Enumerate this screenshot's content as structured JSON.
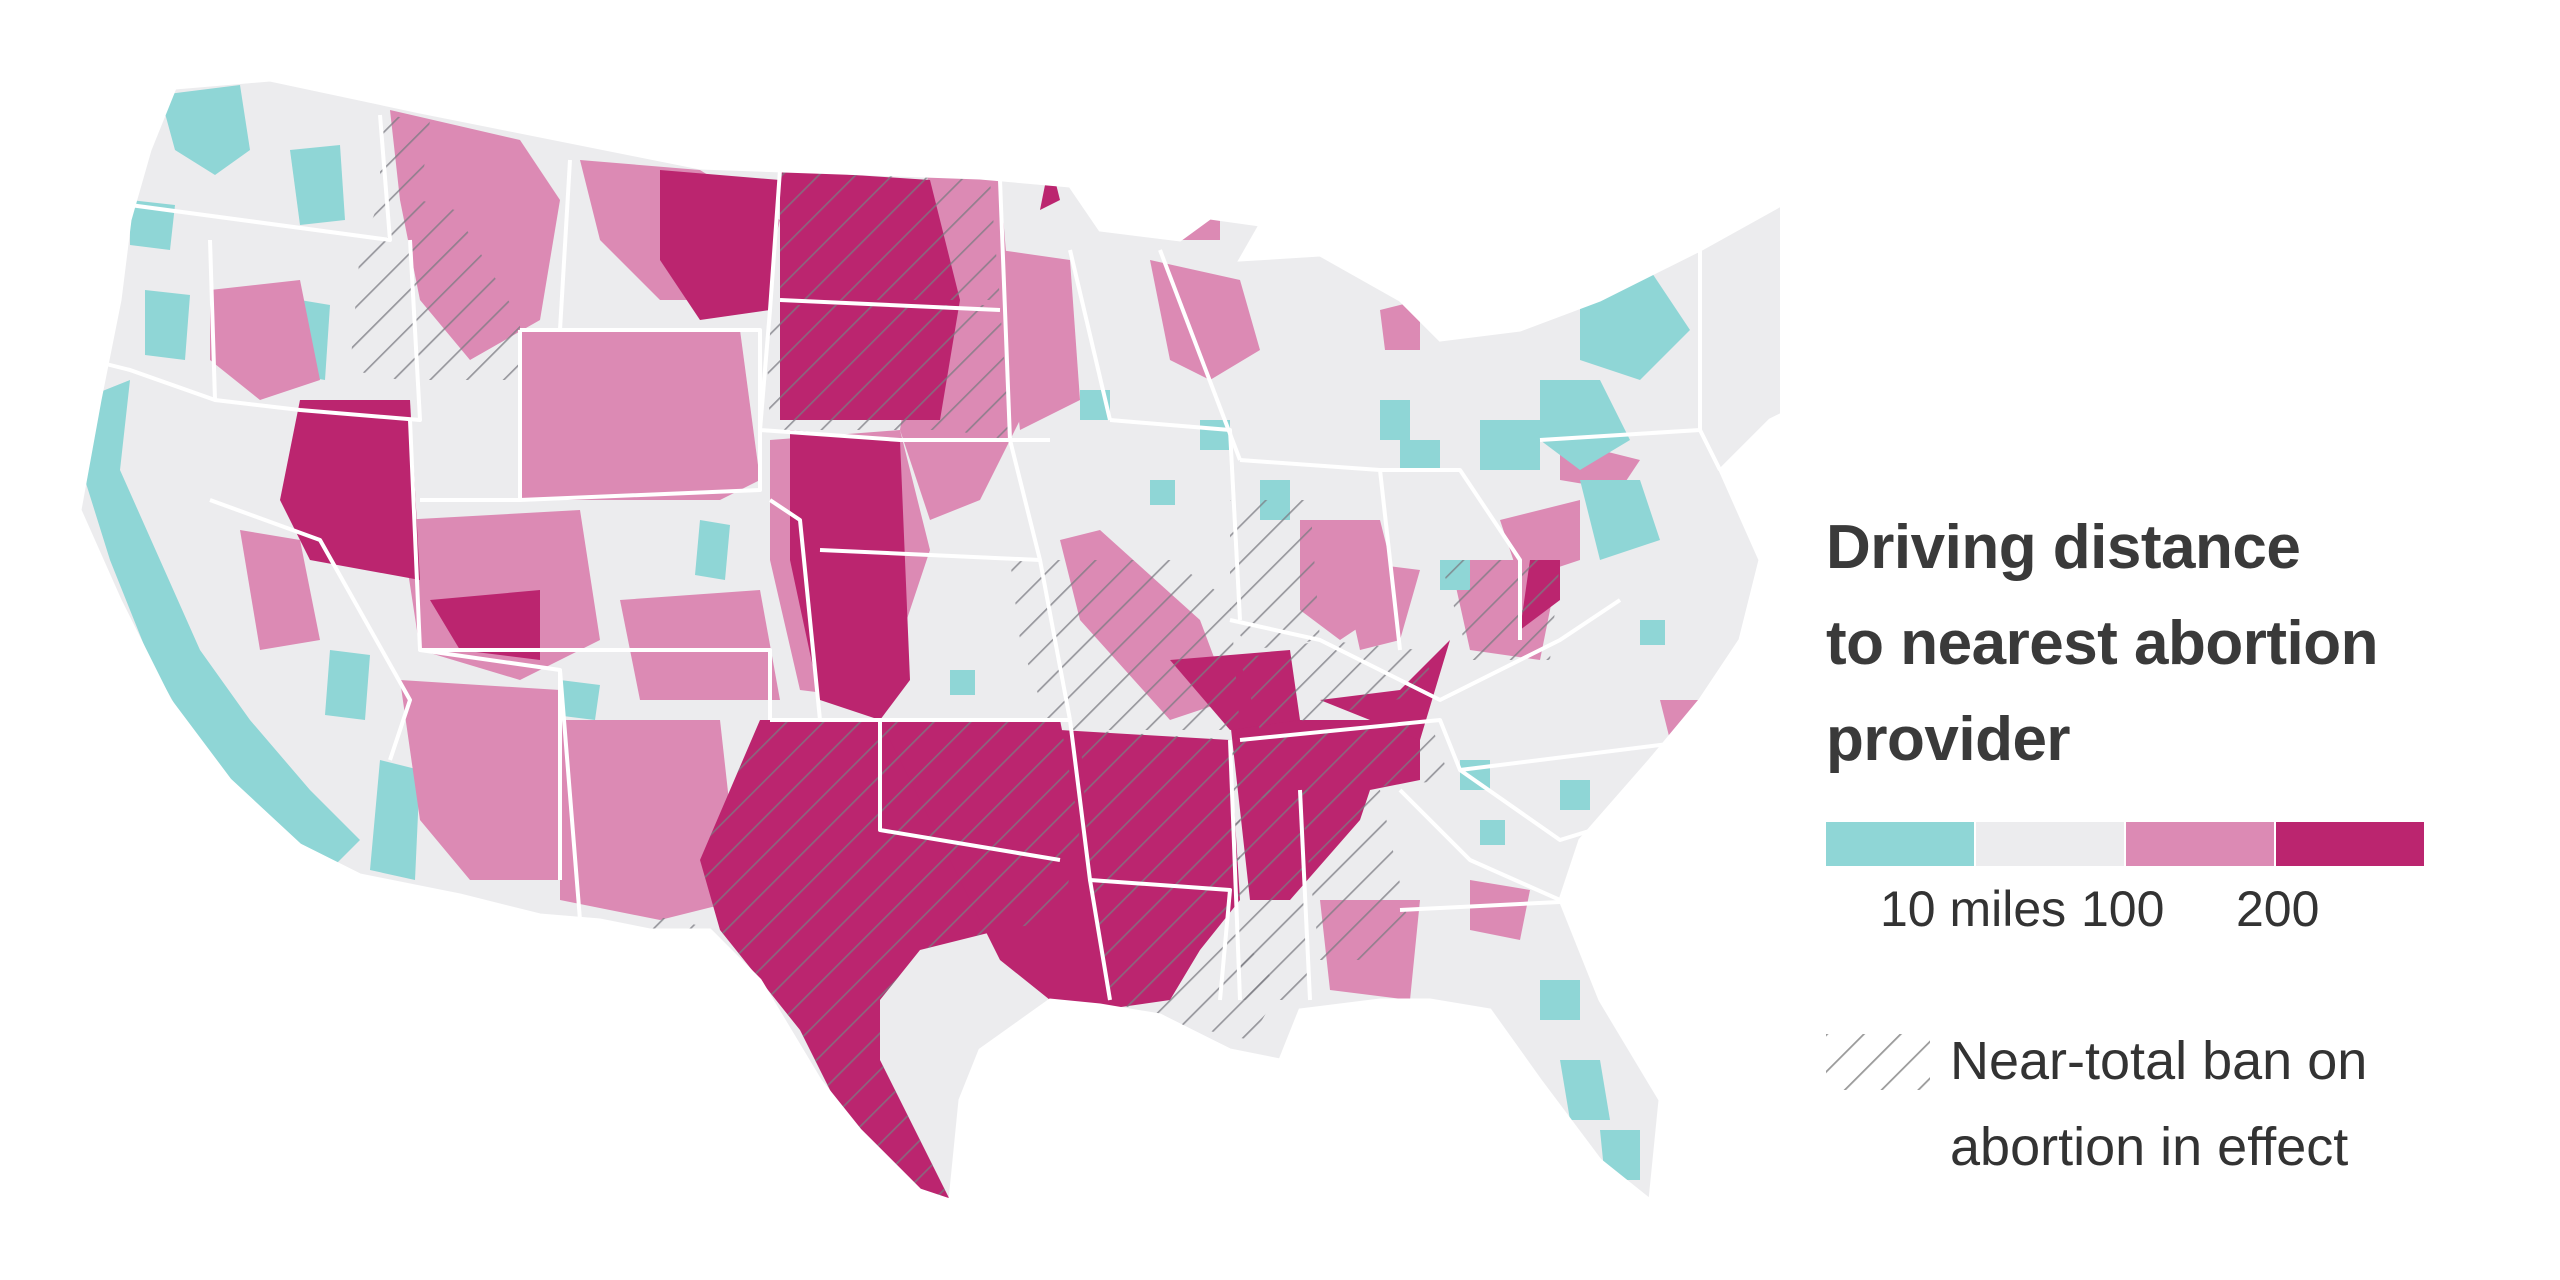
{
  "legend": {
    "title_lines": [
      "Driving distance",
      "to nearest abortion",
      "provider"
    ],
    "scale_labels": [
      "10 miles",
      "100",
      "200"
    ],
    "colors": [
      "#8fd6d6",
      "#ececee",
      "#dc8ab4",
      "#bb256f"
    ],
    "ban_label_lines": [
      "Near-total ban on",
      "abortion in effect"
    ]
  },
  "map": {
    "ban_states": [
      "Idaho",
      "North Dakota",
      "South Dakota",
      "Missouri",
      "Oklahoma",
      "Texas",
      "Arkansas",
      "Louisiana",
      "Mississippi",
      "Alabama",
      "Kentucky",
      "Tennessee",
      "West Virginia",
      "Indiana"
    ],
    "hatch_color": "#8a8a8a",
    "land_color": "#ececee",
    "border_color": "#ffffff"
  }
}
